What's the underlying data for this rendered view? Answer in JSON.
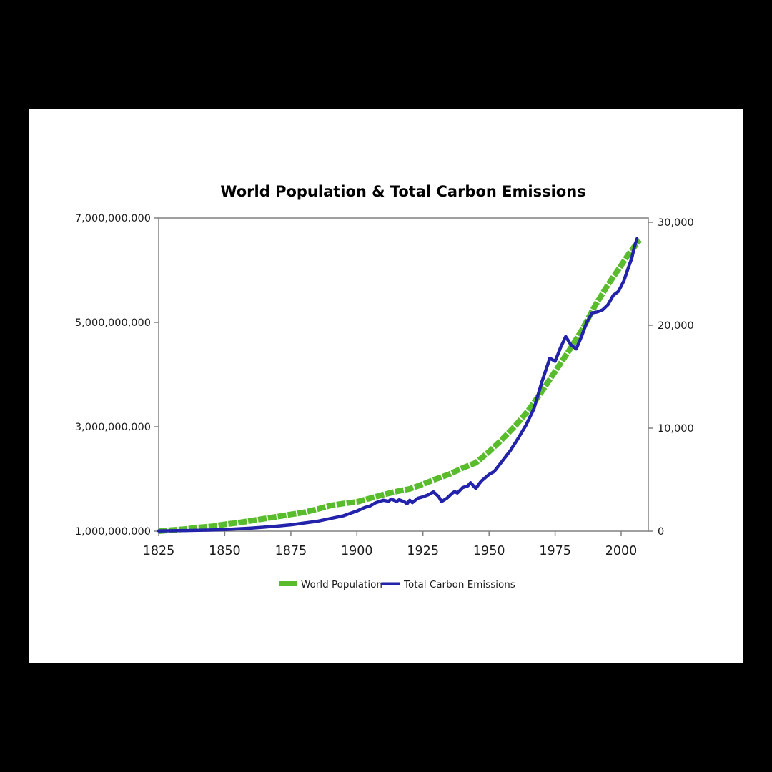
{
  "colors": {
    "page_background": "#000000",
    "sheet_background": "#ffffff",
    "axis": "#808080",
    "text": "#1a1a1a",
    "population_green": "#58BC2D",
    "emissions_blue": "#2222AA"
  },
  "chart_data": {
    "type": "line",
    "title": "World Population & Total Carbon Emissions",
    "grid": false,
    "x_axis": {
      "range": [
        1825,
        2010
      ],
      "tick_labels": [
        "1825",
        "1850",
        "1875",
        "1900",
        "1925",
        "1950",
        "1975",
        "2000"
      ]
    },
    "y_axis_left": {
      "series": "World Population",
      "units": "persons (billions)",
      "range_billions": [
        1,
        7
      ],
      "tick_labels": [
        "1,000,000,000",
        "3,000,000,000",
        "5,000,000,000",
        "7,000,000,000"
      ]
    },
    "y_axis_right": {
      "series": "Total Carbon Emissions",
      "units": "million metric tons CO2",
      "range": [
        0,
        30000
      ],
      "tick_labels": [
        "0",
        "10,000",
        "20,000",
        "30,000"
      ]
    },
    "legend": {
      "position": "bottom",
      "entries": [
        {
          "label": "World Population",
          "color": "#58BC2D"
        },
        {
          "label": "Total Carbon Emissions",
          "color": "#2222AA"
        }
      ]
    },
    "series": [
      {
        "name": "World Population",
        "axis": "left",
        "color": "#58BC2D",
        "style": "thick-dashed",
        "units": "billions",
        "points": [
          [
            1825,
            1.0
          ],
          [
            1830,
            1.02
          ],
          [
            1835,
            1.04
          ],
          [
            1840,
            1.07
          ],
          [
            1845,
            1.09
          ],
          [
            1850,
            1.13
          ],
          [
            1855,
            1.16
          ],
          [
            1860,
            1.2
          ],
          [
            1865,
            1.24
          ],
          [
            1870,
            1.28
          ],
          [
            1875,
            1.32
          ],
          [
            1880,
            1.36
          ],
          [
            1885,
            1.42
          ],
          [
            1890,
            1.49
          ],
          [
            1895,
            1.53
          ],
          [
            1900,
            1.56
          ],
          [
            1905,
            1.63
          ],
          [
            1910,
            1.7
          ],
          [
            1915,
            1.76
          ],
          [
            1920,
            1.81
          ],
          [
            1925,
            1.9
          ],
          [
            1930,
            2.0
          ],
          [
            1935,
            2.09
          ],
          [
            1940,
            2.21
          ],
          [
            1945,
            2.31
          ],
          [
            1950,
            2.52
          ],
          [
            1955,
            2.76
          ],
          [
            1960,
            3.02
          ],
          [
            1965,
            3.32
          ],
          [
            1970,
            3.68
          ],
          [
            1975,
            4.06
          ],
          [
            1980,
            4.44
          ],
          [
            1985,
            4.84
          ],
          [
            1990,
            5.31
          ],
          [
            1995,
            5.72
          ],
          [
            2000,
            6.09
          ],
          [
            2003,
            6.32
          ],
          [
            2007,
            6.58
          ]
        ]
      },
      {
        "name": "Total Carbon Emissions",
        "axis": "right",
        "color": "#2222AA",
        "style": "solid",
        "units": "million metric tons CO2",
        "points": [
          [
            1825,
            30
          ],
          [
            1830,
            45
          ],
          [
            1835,
            60
          ],
          [
            1840,
            80
          ],
          [
            1845,
            110
          ],
          [
            1850,
            160
          ],
          [
            1855,
            220
          ],
          [
            1860,
            300
          ],
          [
            1865,
            390
          ],
          [
            1870,
            490
          ],
          [
            1875,
            620
          ],
          [
            1880,
            790
          ],
          [
            1885,
            960
          ],
          [
            1890,
            1230
          ],
          [
            1895,
            1500
          ],
          [
            1900,
            1960
          ],
          [
            1903,
            2300
          ],
          [
            1905,
            2450
          ],
          [
            1907,
            2750
          ],
          [
            1910,
            3000
          ],
          [
            1912,
            2900
          ],
          [
            1913,
            3120
          ],
          [
            1915,
            2880
          ],
          [
            1916,
            3050
          ],
          [
            1918,
            2850
          ],
          [
            1919,
            2650
          ],
          [
            1920,
            3000
          ],
          [
            1921,
            2770
          ],
          [
            1923,
            3190
          ],
          [
            1925,
            3330
          ],
          [
            1927,
            3530
          ],
          [
            1929,
            3810
          ],
          [
            1931,
            3330
          ],
          [
            1932,
            2870
          ],
          [
            1934,
            3190
          ],
          [
            1936,
            3670
          ],
          [
            1937,
            3850
          ],
          [
            1938,
            3700
          ],
          [
            1940,
            4230
          ],
          [
            1942,
            4400
          ],
          [
            1943,
            4700
          ],
          [
            1945,
            4150
          ],
          [
            1947,
            4850
          ],
          [
            1950,
            5500
          ],
          [
            1952,
            5800
          ],
          [
            1955,
            6800
          ],
          [
            1958,
            7800
          ],
          [
            1961,
            9000
          ],
          [
            1964,
            10300
          ],
          [
            1967,
            11900
          ],
          [
            1970,
            14500
          ],
          [
            1973,
            16800
          ],
          [
            1975,
            16500
          ],
          [
            1977,
            17800
          ],
          [
            1979,
            18900
          ],
          [
            1981,
            18100
          ],
          [
            1983,
            17700
          ],
          [
            1985,
            18900
          ],
          [
            1987,
            20300
          ],
          [
            1989,
            21200
          ],
          [
            1991,
            21300
          ],
          [
            1993,
            21500
          ],
          [
            1995,
            22000
          ],
          [
            1997,
            22900
          ],
          [
            1999,
            23300
          ],
          [
            2001,
            24300
          ],
          [
            2003,
            25800
          ],
          [
            2004,
            26500
          ],
          [
            2005,
            27600
          ],
          [
            2006,
            28400
          ]
        ]
      }
    ]
  }
}
